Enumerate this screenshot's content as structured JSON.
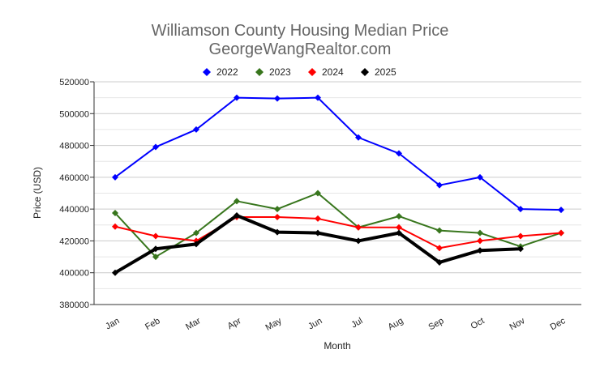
{
  "chart_data": {
    "type": "line",
    "title": "Williamson County Housing Median Price",
    "subtitle": "GeorgeWangRealtor.com",
    "xlabel": "Month",
    "ylabel": "Price (USD)",
    "ylim": [
      380000,
      520000
    ],
    "yticks": [
      "380000",
      "400000",
      "420000",
      "440000",
      "460000",
      "480000",
      "500000",
      "520000"
    ],
    "grid": true,
    "legend_position": "top",
    "categories": [
      "Jan",
      "Feb",
      "Mar",
      "Apr",
      "May",
      "Jun",
      "Jul",
      "Aug",
      "Sep",
      "Oct",
      "Nov",
      "Dec"
    ],
    "series": [
      {
        "name": "2022",
        "color": "#0000ff",
        "width": 2,
        "values": [
          460000,
          479000,
          490000,
          510000,
          509500,
          510000,
          485000,
          475000,
          455000,
          460000,
          440000,
          439500
        ]
      },
      {
        "name": "2023",
        "color": "#38761d",
        "width": 2,
        "values": [
          437500,
          410000,
          425000,
          445000,
          440000,
          450000,
          428500,
          435500,
          426500,
          425000,
          416500,
          425000
        ]
      },
      {
        "name": "2024",
        "color": "#ff0000",
        "width": 2,
        "values": [
          429000,
          423000,
          420000,
          435000,
          435000,
          434000,
          428500,
          428500,
          415500,
          420000,
          423000,
          425000
        ]
      },
      {
        "name": "2025",
        "color": "#000000",
        "width": 4,
        "values": [
          400000,
          415000,
          418000,
          436000,
          425500,
          425000,
          420000,
          425000,
          406500,
          414000,
          415000,
          null
        ]
      }
    ]
  }
}
